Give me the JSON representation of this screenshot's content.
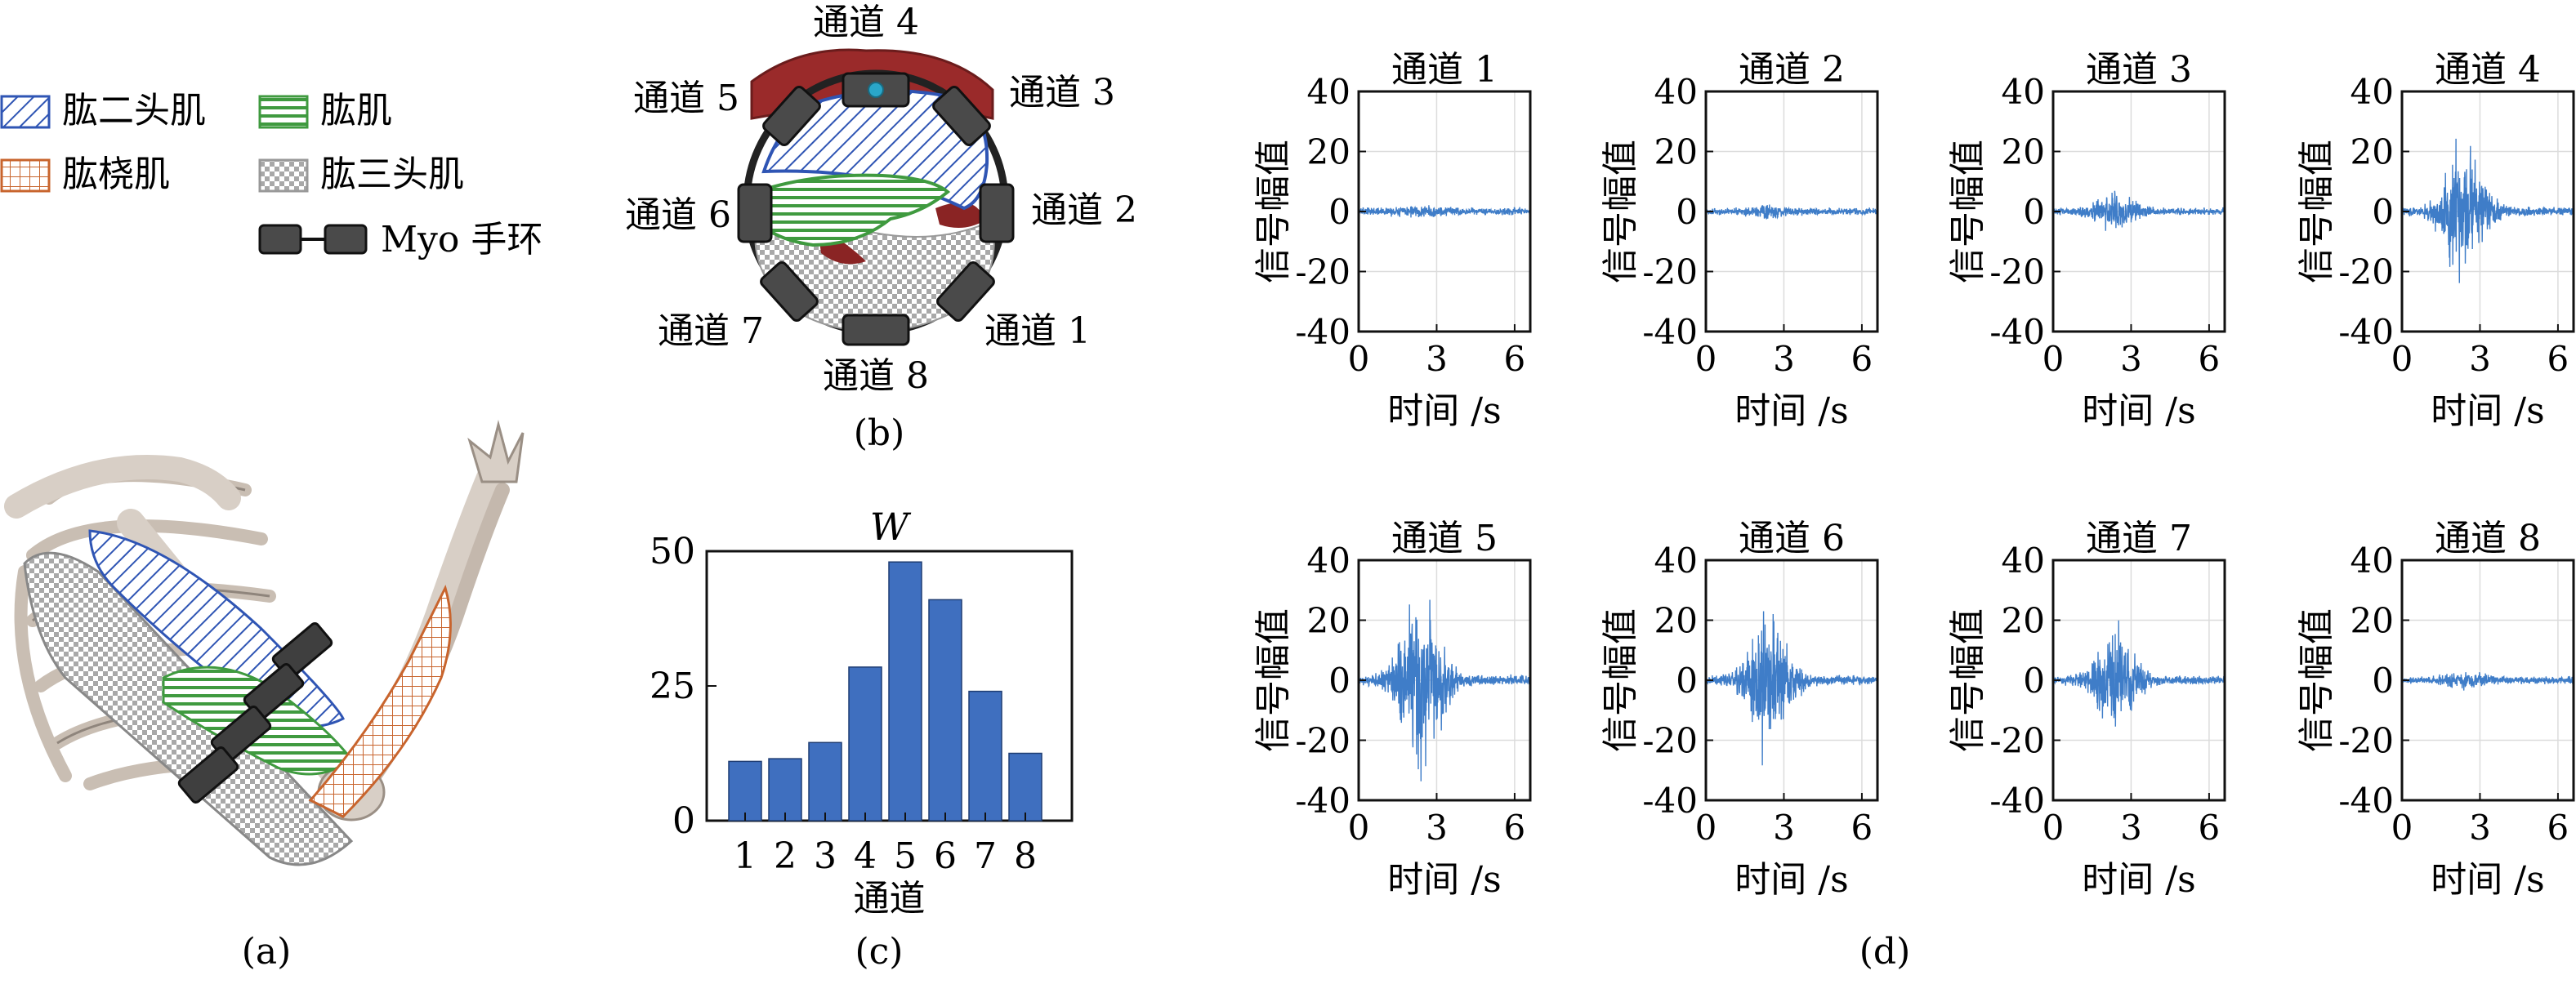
{
  "panel_labels": {
    "a": "(a)",
    "b": "(b)",
    "c": "(c)",
    "d": "(d)"
  },
  "legend": {
    "items": [
      {
        "label": "肱二头肌",
        "pattern": "diag-blue"
      },
      {
        "label": "肱肌",
        "pattern": "hstripe-green"
      },
      {
        "label": "肱桡肌",
        "pattern": "grid-orange"
      },
      {
        "label": "肱三头肌",
        "pattern": "checker-gray"
      },
      {
        "label": "Myo 手环",
        "pattern": "band"
      }
    ]
  },
  "colors": {
    "bar": "#3f6fbf",
    "signal": "#3f7dc8",
    "biceps": "#2f55b4",
    "brachialis": "#3f9a3f",
    "brachioradialis": "#c8642d",
    "triceps": "#9a9a9a",
    "muscle": "#9a2a2a",
    "band": "#4a4a4a",
    "bone": "#d8cfc6"
  },
  "armband": {
    "channels": [
      "通道 1",
      "通道 2",
      "通道 3",
      "通道 4",
      "通道 5",
      "通道 6",
      "通道 7",
      "通道 8"
    ]
  },
  "chart_data": [
    {
      "type": "bar",
      "title": "W",
      "xlabel": "通道",
      "ylabel": "",
      "categories": [
        "1",
        "2",
        "3",
        "4",
        "5",
        "6",
        "7",
        "8"
      ],
      "values": [
        11,
        11.5,
        14.5,
        28.5,
        48,
        41,
        24,
        12.5
      ],
      "ylim": [
        0,
        50
      ],
      "yticks": [
        0,
        25,
        50
      ],
      "grid": false
    },
    {
      "type": "line",
      "layout": "2x4 small multiples",
      "xlabel": "时间  /s",
      "ylabel": "信号幅值",
      "xlim": [
        0,
        6.6
      ],
      "xticks": [
        0,
        3,
        6
      ],
      "ylim": [
        -40,
        40
      ],
      "yticks": [
        -40,
        -20,
        0,
        20,
        40
      ],
      "grid": true,
      "panels": [
        {
          "title": "通道  1",
          "burst_peak": 3,
          "noise": 1.6
        },
        {
          "title": "通道  2",
          "burst_peak": 3,
          "noise": 1.5
        },
        {
          "title": "通道  3",
          "burst_peak": 9,
          "noise": 1.5
        },
        {
          "title": "通道  4",
          "burst_peak": 27,
          "noise": 1.8
        },
        {
          "title": "通道  5",
          "burst_peak": 40,
          "noise": 2.2
        },
        {
          "title": "通道  6",
          "burst_peak": 27,
          "noise": 2.0
        },
        {
          "title": "通道  7",
          "burst_peak": 22,
          "noise": 1.8
        },
        {
          "title": "通道  8",
          "burst_peak": 4,
          "noise": 1.6
        }
      ]
    }
  ]
}
